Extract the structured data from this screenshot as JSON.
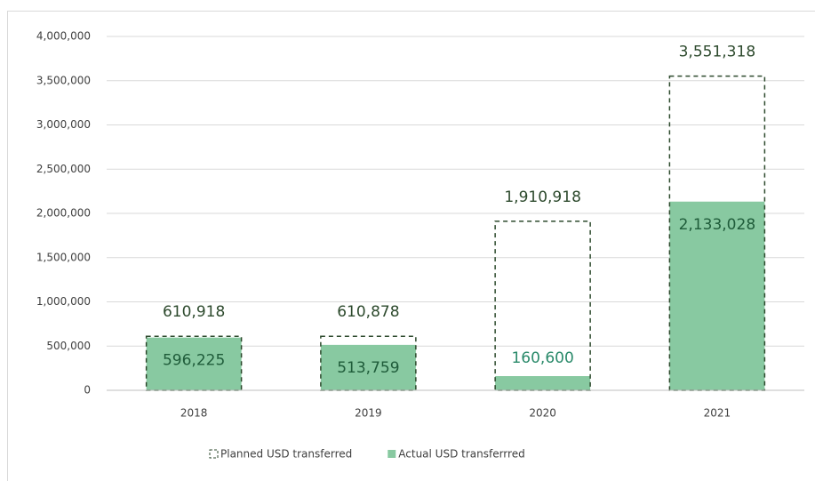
{
  "chart_data": {
    "type": "bar",
    "categories": [
      "2018",
      "2019",
      "2020",
      "2021"
    ],
    "series": [
      {
        "name": "Planned USD transferred",
        "color": "#2d4a2d",
        "style": "dashed-outline",
        "values": [
          610918,
          610878,
          1910918,
          3551318
        ],
        "value_labels": [
          "610,918",
          "610,878",
          "1,910,918",
          "3,551,318"
        ]
      },
      {
        "name": "Actual USD transferrred",
        "color": "#88c9a1",
        "style": "filled",
        "values": [
          596225,
          513759,
          160600,
          2133028
        ],
        "value_labels": [
          "596,225",
          "513,759",
          "160,600",
          "2,133,028"
        ]
      }
    ],
    "ylim": [
      0,
      4000000
    ],
    "yticks": [
      0,
      {
        "value": 500000,
        "label": "500,000"
      },
      {
        "value": 1000000,
        "label": "1,000,000"
      },
      {
        "value": 1500000,
        "label": "1,500,000"
      },
      {
        "value": 2000000,
        "label": "2,000,000"
      },
      {
        "value": 2500000,
        "label": "2,500,000"
      },
      {
        "value": 3000000,
        "label": "3,000,000"
      },
      {
        "value": 3500000,
        "label": "3,500,000"
      },
      {
        "value": 4000000,
        "label": "4,000,000"
      }
    ],
    "grid": true,
    "legend": "bottom"
  }
}
